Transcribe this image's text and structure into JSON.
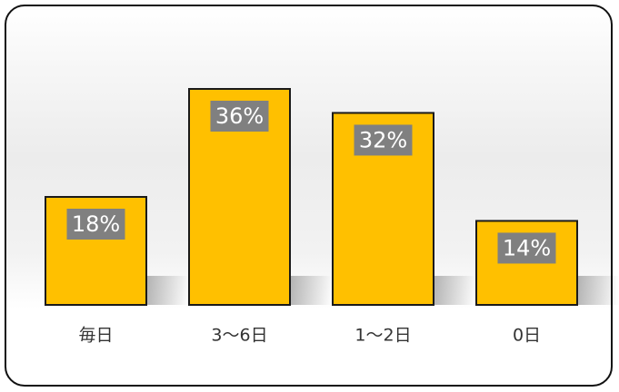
{
  "chart_data": {
    "type": "bar",
    "categories": [
      "毎日",
      "3～6日",
      "1～2日",
      "0日"
    ],
    "values": [
      18,
      36,
      32,
      14
    ],
    "value_labels": [
      "18%",
      "36%",
      "32%",
      "14%"
    ],
    "title": "",
    "xlabel": "",
    "ylabel": "",
    "ylim": [
      0,
      40
    ],
    "grid": false,
    "legend": "none"
  },
  "colors": {
    "bar_fill": "#FFC000",
    "bar_stroke": "#1a1a1a",
    "label_box": "#808080",
    "label_text": "#FFFFFF"
  }
}
